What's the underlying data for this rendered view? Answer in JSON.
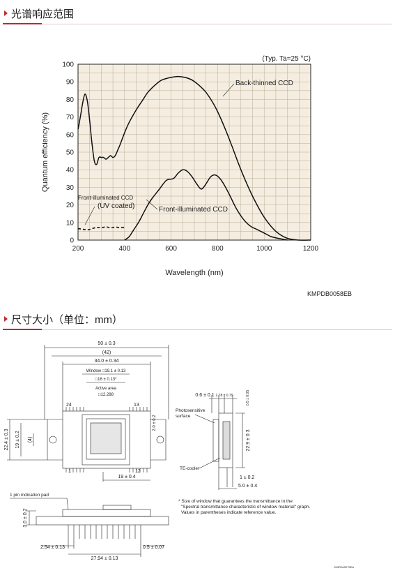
{
  "sections": [
    {
      "title": "光谱响应范围"
    },
    {
      "title": "尺寸大小（单位：mm）"
    }
  ],
  "chart_data": {
    "type": "line",
    "title": "",
    "note": "(Typ. Ta=25 °C)",
    "figure_code": "KMPDB0058EB",
    "xlabel": "Wavelength (nm)",
    "ylabel": "Quantum efficiency (%)",
    "xlim": [
      200,
      1200
    ],
    "ylim": [
      0,
      100
    ],
    "xticks": [
      200,
      400,
      600,
      800,
      1000,
      1200
    ],
    "yticks": [
      0,
      10,
      20,
      30,
      40,
      50,
      60,
      70,
      80,
      90,
      100
    ],
    "grid": true,
    "series": [
      {
        "name": "Back-thinned CCD",
        "style": "solid",
        "x": [
          200,
          210,
          220,
          230,
          240,
          250,
          260,
          270,
          280,
          290,
          300,
          310,
          320,
          330,
          340,
          350,
          360,
          370,
          380,
          400,
          420,
          450,
          480,
          500,
          530,
          560,
          600,
          630,
          660,
          690,
          720,
          750,
          780,
          800,
          830,
          860,
          900,
          950,
          1000,
          1050,
          1100,
          1150,
          1200
        ],
        "y": [
          63,
          70,
          78,
          83,
          79,
          68,
          55,
          45,
          43,
          47,
          47,
          47,
          46,
          47,
          48,
          47,
          48,
          51,
          54,
          61,
          67,
          74,
          80,
          84,
          88,
          91,
          92.5,
          93,
          92.5,
          91,
          88,
          84,
          78,
          73,
          64,
          54,
          40,
          25,
          13,
          5,
          1,
          0,
          0
        ]
      },
      {
        "name": "Front-illuminated CCD",
        "style": "solid",
        "x": [
          400,
          420,
          440,
          460,
          480,
          500,
          520,
          550,
          580,
          610,
          630,
          650,
          670,
          690,
          710,
          730,
          750,
          770,
          790,
          810,
          830,
          850,
          880,
          910,
          940,
          970,
          1000,
          1030,
          1060,
          1100
        ],
        "y": [
          0,
          2,
          6,
          10,
          15,
          20,
          24,
          29,
          34,
          35,
          38,
          40,
          39,
          36,
          32,
          29,
          32,
          36,
          37,
          35,
          31,
          26,
          18,
          12,
          8,
          6,
          4,
          2,
          1,
          0
        ]
      },
      {
        "name": "Front-illuminated CCD (UV coated)",
        "label_lines": [
          "Front-illuminated CCD",
          "(UV coated)"
        ],
        "style": "dashed",
        "x": [
          200,
          220,
          240,
          260,
          280,
          300,
          320,
          340,
          360,
          380,
          400
        ],
        "y": [
          6.5,
          6.2,
          5.8,
          6.5,
          7.2,
          7.0,
          7.5,
          7.0,
          7.4,
          7.1,
          7.3
        ]
      }
    ]
  },
  "drawing": {
    "dims": {
      "w50": "50 ± 0.3",
      "w42": "(42)",
      "w34": "34.0 ± 0.34",
      "window": "Window □19.1 ± 0.13",
      "sq16": "□16 ± 0.13*",
      "active_label": "Active area",
      "active_val": "□12.288",
      "h22": "22.4 ± 0.3",
      "h19": "19 ± 0.2",
      "h4": "(4)",
      "d20": "2.0 ± 0.2",
      "pin24": "24",
      "pin13": "13",
      "pin1": "1",
      "pin12": "12",
      "w19b": "19 ± 0.4",
      "s06": "0.6 ± 0.1",
      "s278": "2.78 ± 0.79",
      "s05": "0.5 ± 0.05",
      "photo": "Photosensitive\nsurface",
      "s229": "22.9 ± 0.3",
      "te": "TE-cooler",
      "s1": "1 ± 0.2",
      "s5": "5.0 ± 0.4",
      "pin_pad": "1 pin indication pad",
      "b30": "3.0 ± 0.2",
      "b254": "2.54 ± 0.13",
      "b2794": "27.94 ± 0.13",
      "b05": "0.5 ± 0.07",
      "footnote": "* Size of window that guarantees the transmittance in the\n\"Spectral transmittance characteristic of window material\" graph.\nValues in parentheses indicate reference value.",
      "code": "KMPDA0279EA"
    }
  }
}
